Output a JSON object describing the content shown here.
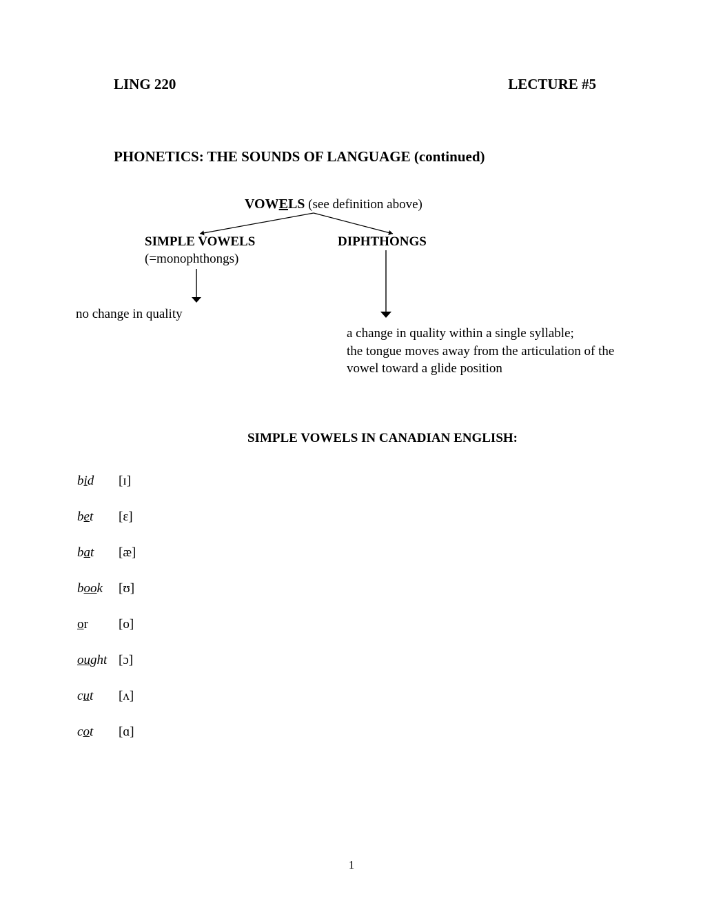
{
  "header": {
    "left": "LING 220",
    "right": "LECTURE #5"
  },
  "title": "PHONETICS: THE SOUNDS OF LANGUAGE (continued)",
  "diagram": {
    "root": {
      "boldPrefix": "VOW",
      "boldUnder": "E",
      "boldSuffix": "LS",
      "paren": " (see definition above)"
    },
    "left": {
      "label": "SIMPLE  VOWELS",
      "sub": "(=monophthongs)",
      "desc": "no change in quality"
    },
    "right": {
      "label": "DIPHTHONGS",
      "desc1": "a change in quality within a single syllable;",
      "desc2": "the tongue moves away from the articulation of the",
      "desc3": "vowel toward a glide position"
    },
    "branch": {
      "stroke": "#000000",
      "strokeWidth": 1.2,
      "apex": [
        180,
        0
      ],
      "leftEnd": [
        15,
        30
      ],
      "rightEnd": [
        295,
        30
      ]
    },
    "leftArrow": {
      "stroke": "#000000",
      "strokeWidth": 1.4,
      "length": 42,
      "headSize": 7
    },
    "rightArrow": {
      "stroke": "#000000",
      "strokeWidth": 1.4,
      "length": 90,
      "headSize": 8
    }
  },
  "sectionHeading": "SIMPLE VOWELS IN CANADIAN ENGLISH:",
  "vowels": [
    {
      "pre": "b",
      "under": "i",
      "post": "d",
      "ipa": "[ɪ]",
      "italic": true
    },
    {
      "pre": "b",
      "under": "e",
      "post": "t",
      "ipa": "[ɛ]",
      "italic": true
    },
    {
      "pre": "b",
      "under": "a",
      "post": "t",
      "ipa": "[æ]",
      "italic": true
    },
    {
      "pre": "b",
      "under": "oo",
      "post": "k",
      "ipa": "[ʊ]",
      "italic": true
    },
    {
      "pre": "",
      "under": "o",
      "post": "r",
      "ipa": "[o]",
      "italic": false
    },
    {
      "pre": "",
      "under": "ou",
      "post": "ght",
      "ipa": "[ɔ]",
      "italic": true
    },
    {
      "pre": "c",
      "under": "u",
      "post": "t",
      "ipa": "[ʌ]",
      "italic": true
    },
    {
      "pre": "c",
      "under": "o",
      "post": "t",
      "ipa": "[ɑ]",
      "italic": true
    }
  ],
  "pageNumber": "1"
}
